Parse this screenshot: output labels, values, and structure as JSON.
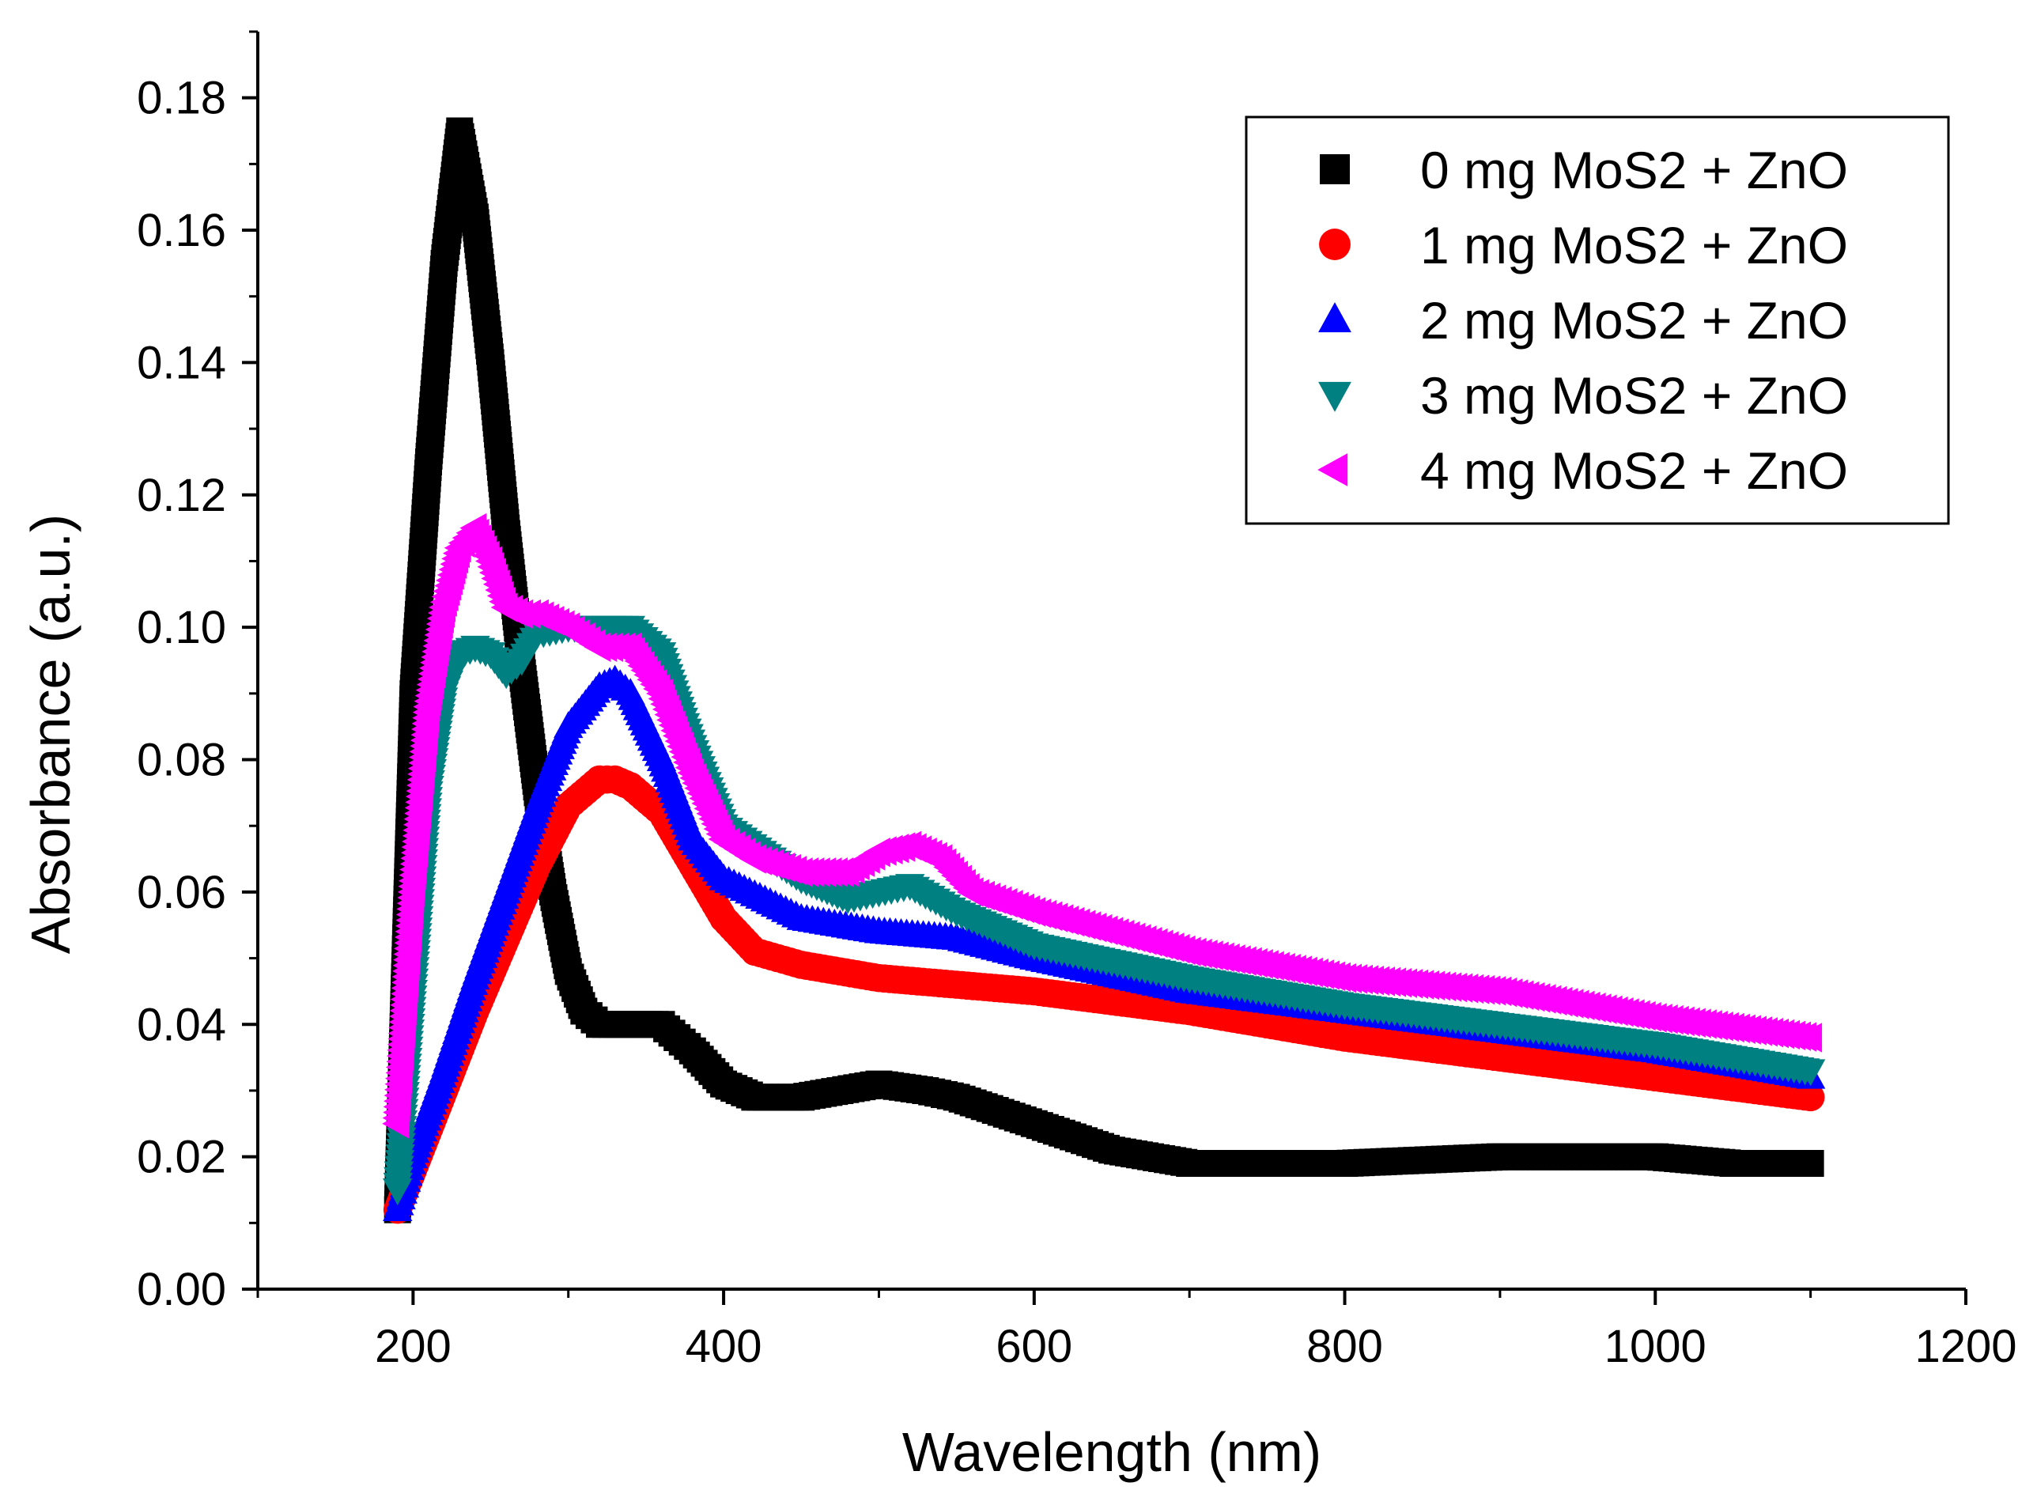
{
  "chart_data": {
    "type": "scatter",
    "title": "",
    "xlabel": "Wavelength (nm)",
    "ylabel": "Absorbance (a.u.)",
    "xlim": [
      100,
      1200
    ],
    "ylim": [
      0,
      0.19
    ],
    "x_ticks": [
      200,
      400,
      600,
      800,
      1000,
      1200
    ],
    "x_tick_labels": [
      "200",
      "400",
      "600",
      "800",
      "1000",
      "1200"
    ],
    "y_ticks": [
      0,
      0.02,
      0.04,
      0.06,
      0.08,
      0.1,
      0.12,
      0.14,
      0.16,
      0.18
    ],
    "y_tick_labels": [
      "0.00",
      "0.02",
      "0.04",
      "0.06",
      "0.08",
      "0.10",
      "0.12",
      "0.14",
      "0.16",
      "0.18"
    ],
    "grid": false,
    "legend_position": "top-right",
    "series": [
      {
        "name": "0 mg MoS2 + ZnO",
        "marker": "square",
        "color": "#000000",
        "x": [
          190,
          200,
          210,
          220,
          230,
          240,
          250,
          260,
          270,
          280,
          290,
          300,
          310,
          320,
          340,
          360,
          370,
          380,
          400,
          420,
          450,
          500,
          530,
          550,
          600,
          650,
          700,
          800,
          900,
          1000,
          1050,
          1100
        ],
        "y": [
          0.012,
          0.09,
          0.125,
          0.155,
          0.175,
          0.162,
          0.14,
          0.115,
          0.094,
          0.075,
          0.06,
          0.048,
          0.042,
          0.04,
          0.04,
          0.04,
          0.038,
          0.036,
          0.031,
          0.029,
          0.029,
          0.031,
          0.03,
          0.029,
          0.025,
          0.021,
          0.019,
          0.019,
          0.02,
          0.02,
          0.019,
          0.019
        ]
      },
      {
        "name": "1 mg MoS2 + ZnO",
        "marker": "circle",
        "color": "#ff0000",
        "x": [
          190,
          200,
          220,
          240,
          260,
          280,
          300,
          320,
          330,
          340,
          360,
          380,
          400,
          420,
          450,
          500,
          550,
          600,
          700,
          800,
          900,
          1000,
          1100
        ],
        "y": [
          0.012,
          0.018,
          0.03,
          0.042,
          0.053,
          0.064,
          0.073,
          0.077,
          0.077,
          0.076,
          0.072,
          0.064,
          0.056,
          0.051,
          0.049,
          0.047,
          0.046,
          0.045,
          0.042,
          0.038,
          0.035,
          0.032,
          0.029
        ]
      },
      {
        "name": "2 mg MoS2 + ZnO",
        "marker": "triangle-up",
        "color": "#0000ff",
        "x": [
          190,
          200,
          220,
          240,
          260,
          280,
          300,
          320,
          330,
          340,
          360,
          380,
          400,
          450,
          500,
          550,
          600,
          700,
          800,
          900,
          1000,
          1100
        ],
        "y": [
          0.012,
          0.02,
          0.033,
          0.047,
          0.06,
          0.073,
          0.085,
          0.091,
          0.092,
          0.09,
          0.08,
          0.068,
          0.062,
          0.056,
          0.054,
          0.053,
          0.05,
          0.045,
          0.042,
          0.039,
          0.036,
          0.032
        ]
      },
      {
        "name": "3 mg MoS2 + ZnO",
        "marker": "triangle-down",
        "color": "#008080",
        "x": [
          190,
          200,
          210,
          220,
          230,
          240,
          250,
          260,
          270,
          280,
          300,
          320,
          340,
          360,
          380,
          400,
          450,
          480,
          500,
          520,
          550,
          600,
          700,
          800,
          900,
          1000,
          1100
        ],
        "y": [
          0.015,
          0.045,
          0.075,
          0.09,
          0.096,
          0.097,
          0.096,
          0.093,
          0.095,
          0.099,
          0.1,
          0.1,
          0.1,
          0.096,
          0.082,
          0.07,
          0.062,
          0.059,
          0.06,
          0.061,
          0.057,
          0.052,
          0.047,
          0.043,
          0.04,
          0.037,
          0.033
        ]
      },
      {
        "name": "4 mg MoS2 + ZnO",
        "marker": "triangle-left",
        "color": "#ff00ff",
        "x": [
          190,
          200,
          210,
          220,
          230,
          240,
          250,
          260,
          270,
          280,
          300,
          320,
          340,
          360,
          380,
          400,
          420,
          450,
          480,
          500,
          520,
          540,
          560,
          600,
          700,
          800,
          900,
          1000,
          1100
        ],
        "y": [
          0.025,
          0.06,
          0.088,
          0.103,
          0.112,
          0.115,
          0.11,
          0.103,
          0.102,
          0.102,
          0.1,
          0.097,
          0.097,
          0.09,
          0.078,
          0.068,
          0.065,
          0.063,
          0.063,
          0.066,
          0.067,
          0.065,
          0.06,
          0.057,
          0.051,
          0.047,
          0.045,
          0.041,
          0.038
        ]
      }
    ]
  }
}
